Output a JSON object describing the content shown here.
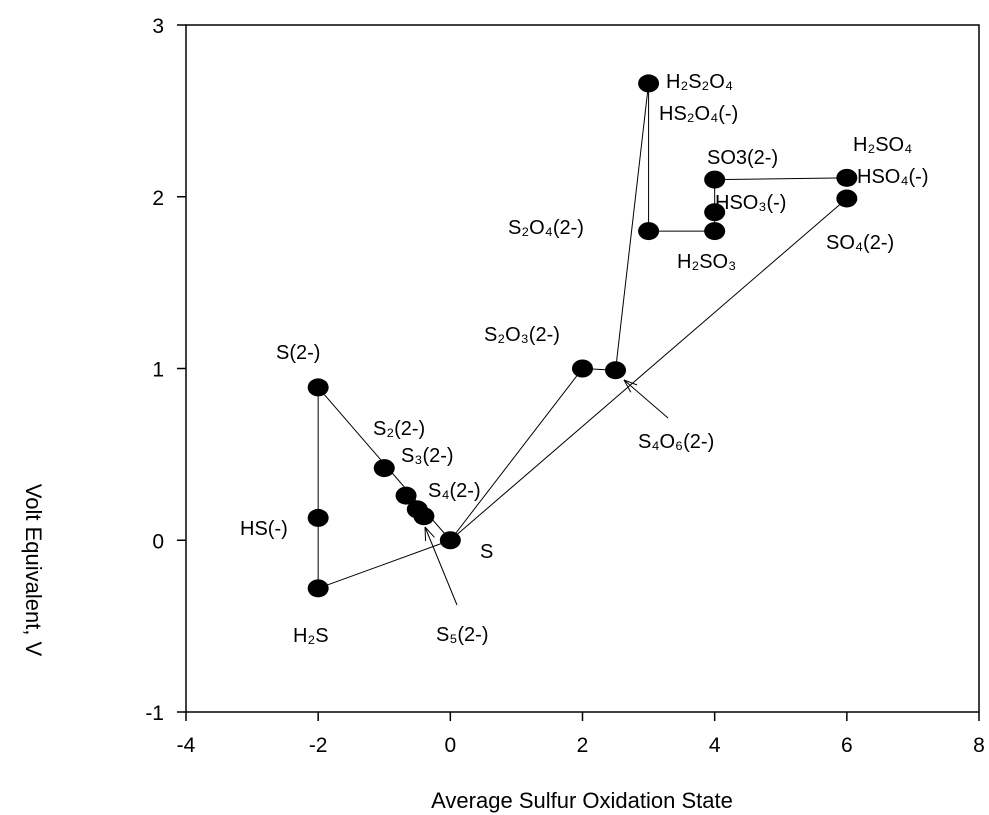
{
  "chart_data": {
    "type": "scatter",
    "xlabel": "Average Sulfur Oxidation State",
    "ylabel": "Volt Equivalent, V",
    "xlim": [
      -4,
      8
    ],
    "ylim": [
      -1,
      3
    ],
    "xticks": [
      "-4",
      "-2",
      "0",
      "2",
      "4",
      "6",
      "8"
    ],
    "yticks": [
      "-1",
      "0",
      "1",
      "2",
      "3"
    ],
    "points": [
      {
        "x": -2,
        "y": 0.89
      },
      {
        "x": -2,
        "y": 0.13
      },
      {
        "x": -2,
        "y": -0.28
      },
      {
        "x": -1,
        "y": 0.42
      },
      {
        "x": -0.67,
        "y": 0.26
      },
      {
        "x": -0.5,
        "y": 0.18
      },
      {
        "x": -0.4,
        "y": 0.14
      },
      {
        "x": 0,
        "y": 0
      },
      {
        "x": 2,
        "y": 1.0
      },
      {
        "x": 2.5,
        "y": 0.99
      },
      {
        "x": 3,
        "y": 2.66
      },
      {
        "x": 3,
        "y": 1.8
      },
      {
        "x": 4,
        "y": 2.1
      },
      {
        "x": 4,
        "y": 1.91
      },
      {
        "x": 4,
        "y": 1.8
      },
      {
        "x": 6,
        "y": 2.11
      },
      {
        "x": 6,
        "y": 1.99
      }
    ],
    "connections": [
      [
        [
          -2,
          0.89
        ],
        [
          -2,
          -0.28
        ]
      ],
      [
        [
          -2,
          0.89
        ],
        [
          0,
          0
        ]
      ],
      [
        [
          -2,
          -0.28
        ],
        [
          0,
          0
        ]
      ],
      [
        [
          0,
          0
        ],
        [
          2,
          1.0
        ]
      ],
      [
        [
          2,
          1.0
        ],
        [
          2.5,
          0.99
        ]
      ],
      [
        [
          2.5,
          0.99
        ],
        [
          3,
          2.66
        ]
      ],
      [
        [
          3,
          2.66
        ],
        [
          3,
          1.8
        ]
      ],
      [
        [
          3,
          1.8
        ],
        [
          4,
          1.8
        ]
      ],
      [
        [
          4,
          1.8
        ],
        [
          4,
          2.1
        ]
      ],
      [
        [
          4,
          2.1
        ],
        [
          6,
          2.11
        ]
      ],
      [
        [
          0,
          0
        ],
        [
          6,
          1.99
        ]
      ]
    ],
    "labels": [
      {
        "text": "S(2-)",
        "x": -2,
        "y": 0.89
      },
      {
        "text": "HS(-)",
        "x": -2,
        "y": 0.13
      },
      {
        "text": "H₂S",
        "x": -2,
        "y": -0.28
      },
      {
        "text": "S₂(2-)",
        "x": -1,
        "y": 0.42
      },
      {
        "text": "S₃(2-)",
        "x": -0.67,
        "y": 0.26
      },
      {
        "text": "S₄(2-)",
        "x": -0.5,
        "y": 0.18
      },
      {
        "text": "S₅(2-)",
        "x": -0.4,
        "y": 0.14
      },
      {
        "text": "S",
        "x": 0,
        "y": 0
      },
      {
        "text": "S₂O₃(2-)",
        "x": 2,
        "y": 1.0
      },
      {
        "text": "S₄O₆(2-)",
        "x": 2.5,
        "y": 0.99
      },
      {
        "text": "H₂S₂O₄",
        "x": 3,
        "y": 2.66
      },
      {
        "text": "HS₂O₄(-)",
        "x": 3,
        "y": 2.66
      },
      {
        "text": "S₂O₄(2-)",
        "x": 3,
        "y": 1.8
      },
      {
        "text": "SO3(2-)",
        "x": 4,
        "y": 2.1
      },
      {
        "text": "HSO₃(-)",
        "x": 4,
        "y": 1.91
      },
      {
        "text": "H₂SO₃",
        "x": 4,
        "y": 1.8
      },
      {
        "text": "H₂SO₄",
        "x": 6,
        "y": 2.11
      },
      {
        "text": "HSO₄(-)",
        "x": 6,
        "y": 2.11
      },
      {
        "text": "SO₄(2-)",
        "x": 6,
        "y": 1.99
      }
    ]
  }
}
